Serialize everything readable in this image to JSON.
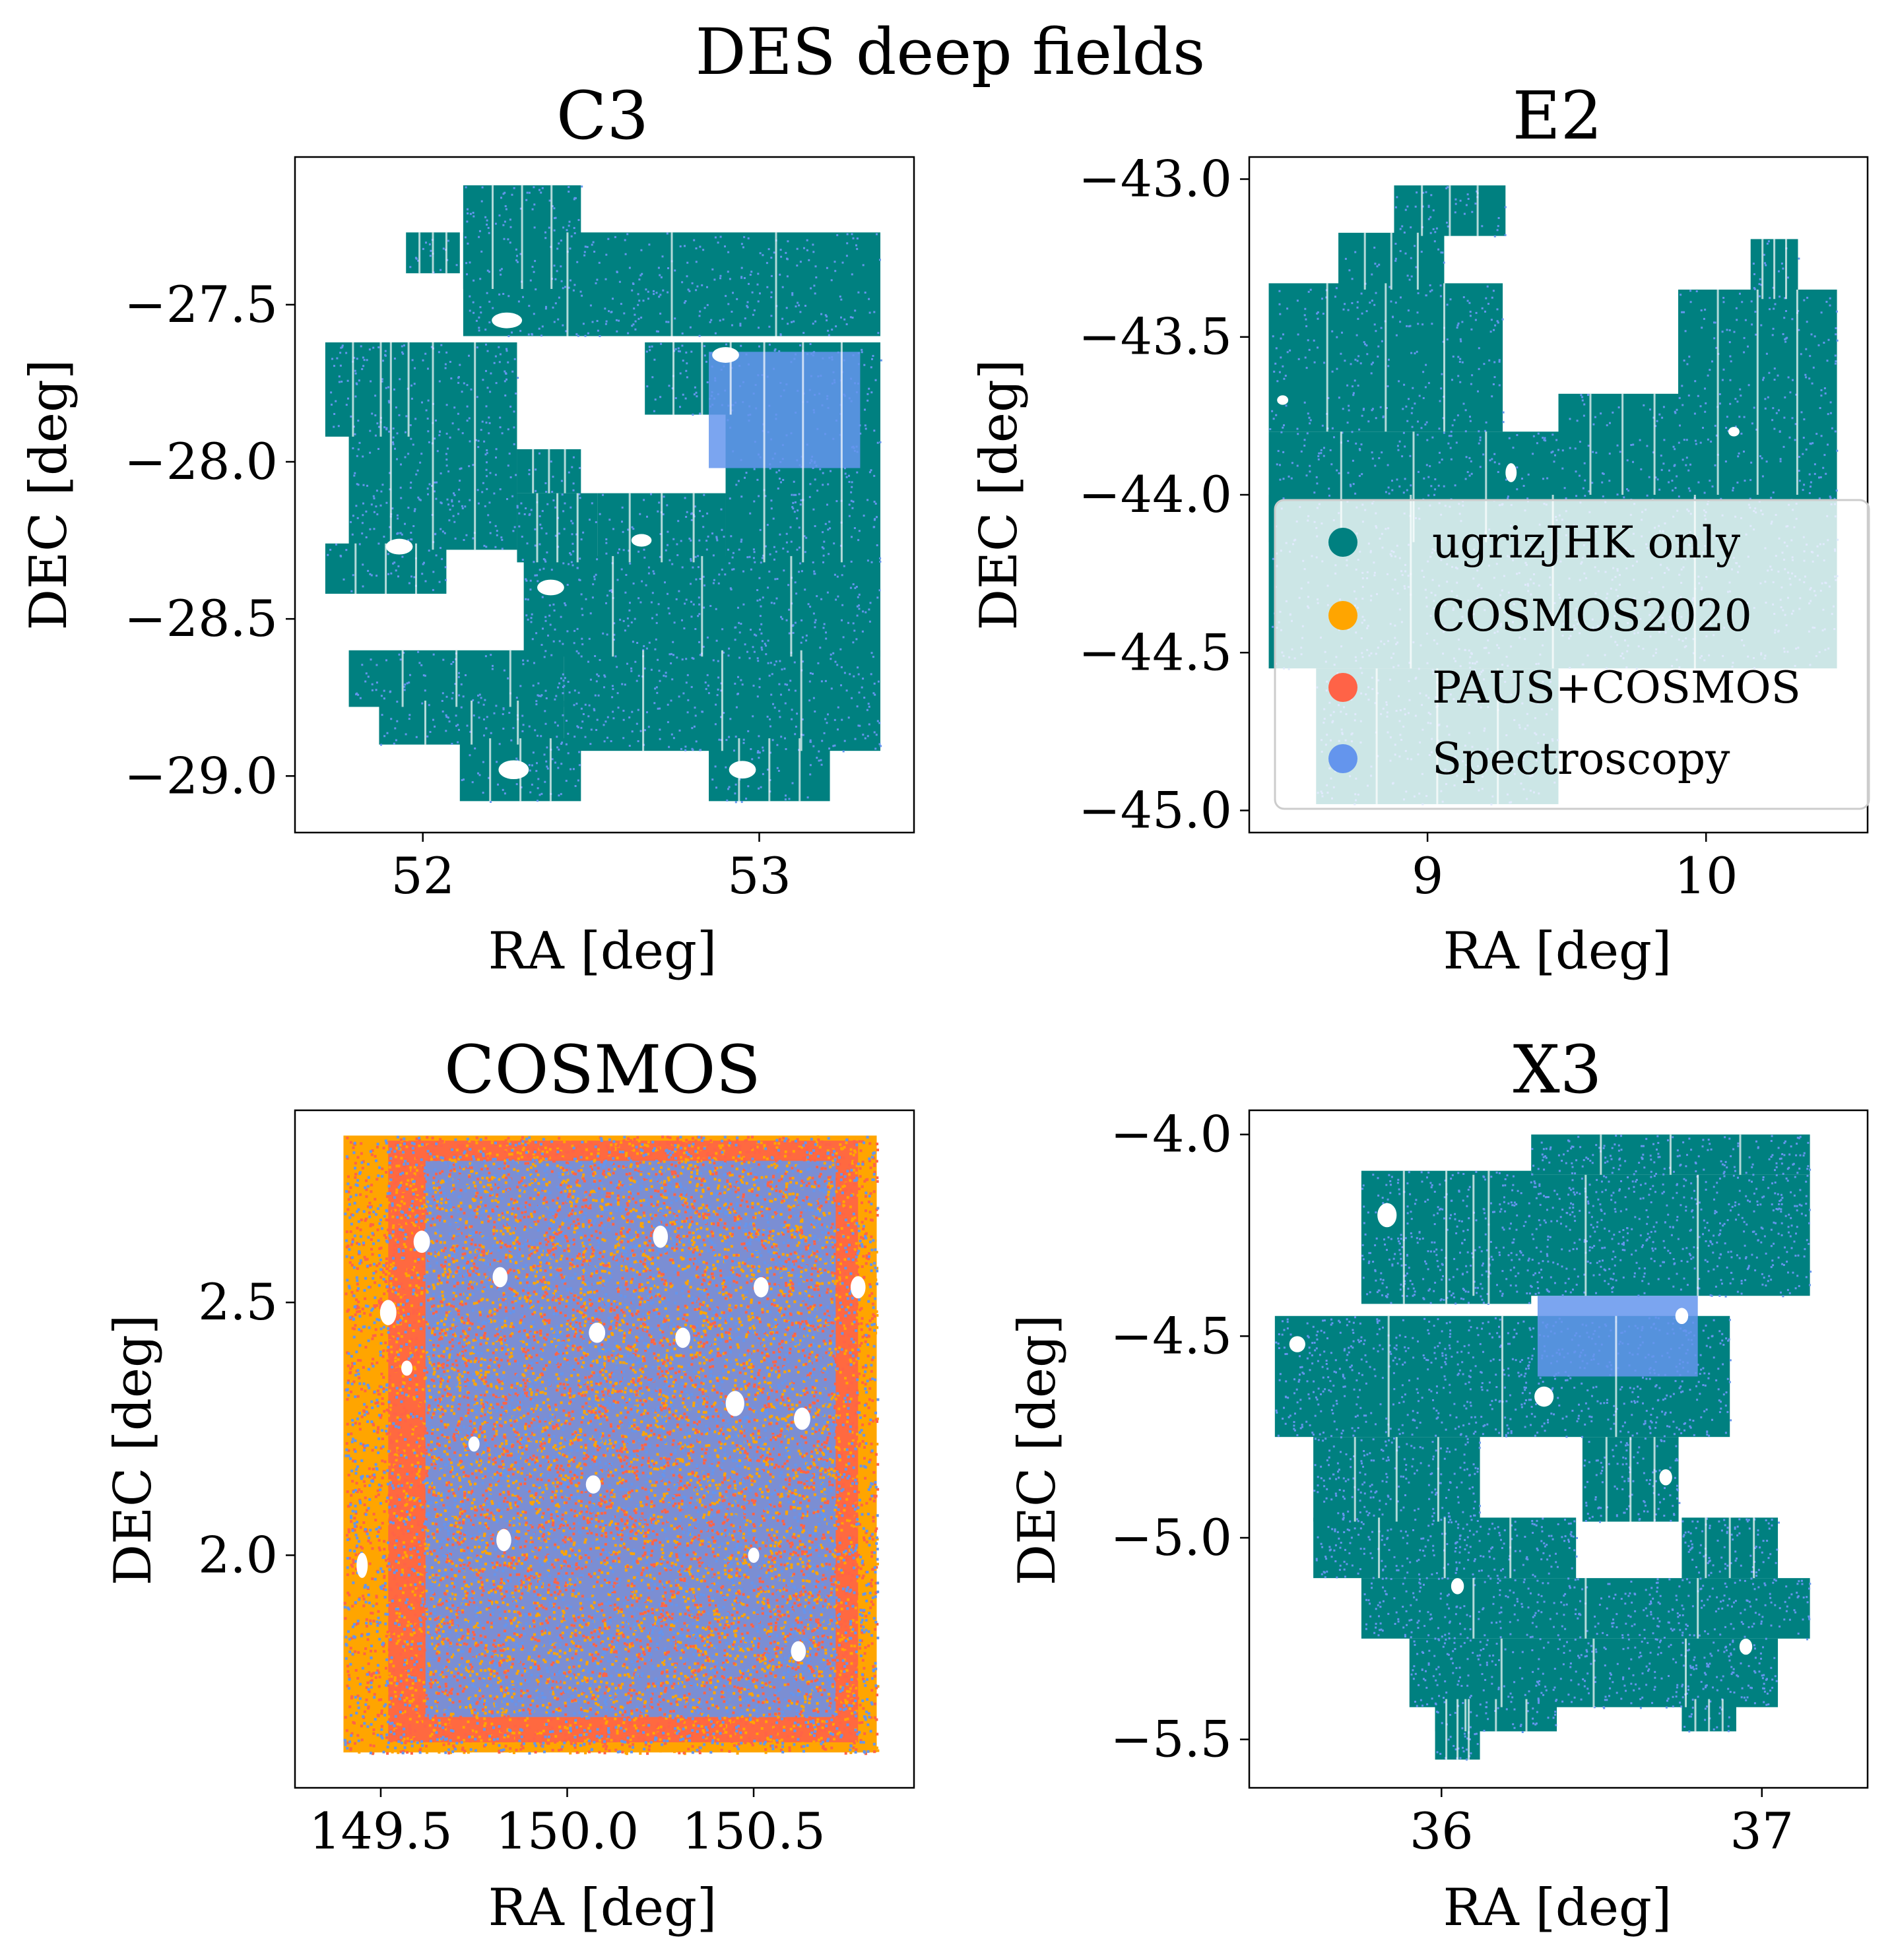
{
  "figure": {
    "title": "DES deep fields"
  },
  "colors": {
    "ugrizJHK only": "#008080",
    "COSMOS2020": "#FFA500",
    "PAUS+COSMOS": "#FF6347",
    "Spectroscopy": "#6495ED"
  },
  "legend": {
    "placement": "E2 panel, lower-right",
    "entries": [
      "ugrizJHK only",
      "COSMOS2020",
      "PAUS+COSMOS",
      "Spectroscopy"
    ]
  },
  "chart_data": [
    {
      "type": "scatter",
      "title": "C3",
      "xlabel": "RA [deg]",
      "ylabel": "DEC [deg]",
      "xlim": [
        51.62,
        53.46
      ],
      "ylim": [
        -29.18,
        -27.03
      ],
      "xticks": [
        "52",
        "53"
      ],
      "xtick_values": [
        52,
        53
      ],
      "yticks": [
        "−29.0",
        "−28.5",
        "−28.0",
        "−27.5"
      ],
      "ytick_values": [
        -29.0,
        -28.5,
        -28.0,
        -27.5
      ],
      "footprint": [
        [
          52.12,
          52.47,
          -27.45,
          -27.12
        ],
        [
          51.95,
          52.11,
          -27.4,
          -27.27
        ],
        [
          52.12,
          53.36,
          -27.6,
          -27.27
        ],
        [
          51.71,
          52.04,
          -27.92,
          -27.62
        ],
        [
          51.78,
          52.28,
          -28.28,
          -27.62
        ],
        [
          51.71,
          52.07,
          -28.42,
          -28.26
        ],
        [
          52.28,
          52.47,
          -28.1,
          -27.96
        ],
        [
          52.28,
          52.52,
          -28.32,
          -28.1
        ],
        [
          52.52,
          52.9,
          -28.32,
          -28.1
        ],
        [
          52.66,
          53.0,
          -27.85,
          -27.62
        ],
        [
          52.9,
          53.36,
          -28.32,
          -27.62
        ],
        [
          52.3,
          53.36,
          -28.62,
          -28.3
        ],
        [
          52.42,
          53.36,
          -28.92,
          -28.6
        ],
        [
          51.78,
          52.42,
          -28.78,
          -28.6
        ],
        [
          51.87,
          52.42,
          -28.9,
          -28.76
        ],
        [
          52.11,
          52.47,
          -29.08,
          -28.88
        ],
        [
          52.85,
          53.21,
          -29.08,
          -28.88
        ]
      ],
      "holes": [
        [
          52.25,
          -27.55,
          0.045,
          0.025
        ],
        [
          52.9,
          -27.66,
          0.04,
          0.025
        ],
        [
          52.38,
          -28.4,
          0.04,
          0.025
        ],
        [
          51.93,
          -28.27,
          0.04,
          0.025
        ],
        [
          52.27,
          -28.98,
          0.045,
          0.03
        ],
        [
          52.95,
          -28.98,
          0.04,
          0.028
        ],
        [
          52.65,
          -28.25,
          0.03,
          0.02
        ]
      ],
      "spec_dense": [
        [
          52.85,
          53.3,
          -28.02,
          -27.65
        ]
      ],
      "series": [
        {
          "name": "ugrizJHK only",
          "fraction": 0.82
        },
        {
          "name": "Spectroscopy",
          "fraction": 0.18
        }
      ]
    },
    {
      "type": "scatter",
      "title": "E2",
      "xlabel": "RA [deg]",
      "ylabel": "DEC [deg]",
      "xlim": [
        8.36,
        10.58
      ],
      "ylim": [
        -45.07,
        -42.93
      ],
      "xticks": [
        "9",
        "10"
      ],
      "xtick_values": [
        9,
        10
      ],
      "yticks": [
        "−45.0",
        "−44.5",
        "−44.0",
        "−43.5",
        "−43.0"
      ],
      "ytick_values": [
        -45.0,
        -44.5,
        -44.0,
        -43.5,
        -43.0
      ],
      "footprint": [
        [
          8.88,
          9.28,
          -43.18,
          -43.02
        ],
        [
          8.68,
          9.06,
          -43.35,
          -43.17
        ],
        [
          8.43,
          9.27,
          -43.8,
          -43.33
        ],
        [
          8.43,
          9.47,
          -44.15,
          -43.8
        ],
        [
          9.47,
          9.93,
          -44.0,
          -43.68
        ],
        [
          9.9,
          10.47,
          -44.0,
          -43.35
        ],
        [
          10.16,
          10.33,
          -43.38,
          -43.19
        ],
        [
          8.43,
          10.47,
          -44.55,
          -44.0
        ],
        [
          8.6,
          9.47,
          -44.98,
          -44.55
        ]
      ],
      "holes": [
        [
          9.3,
          -43.93,
          0.02,
          0.03
        ],
        [
          8.48,
          -43.7,
          0.02,
          0.015
        ],
        [
          10.1,
          -43.8,
          0.02,
          0.015
        ]
      ],
      "spec_dense": [],
      "series": [
        {
          "name": "ugrizJHK only",
          "fraction": 0.85
        },
        {
          "name": "Spectroscopy",
          "fraction": 0.15
        }
      ]
    },
    {
      "type": "scatter",
      "title": "COSMOS",
      "xlabel": "RA [deg]",
      "ylabel": "DEC [deg]",
      "xlim": [
        149.27,
        150.93
      ],
      "ylim": [
        1.54,
        2.88
      ],
      "xticks": [
        "149.5",
        "150.0",
        "150.5"
      ],
      "xtick_values": [
        149.5,
        150.0,
        150.5
      ],
      "yticks": [
        "2.0",
        "2.5"
      ],
      "ytick_values": [
        2.0,
        2.5
      ],
      "footprint": [
        [
          149.4,
          150.83,
          1.61,
          2.83
        ]
      ],
      "holes": [
        [
          149.61,
          2.62,
          0.022,
          0.022
        ],
        [
          150.25,
          2.63,
          0.02,
          0.022
        ],
        [
          150.08,
          2.44,
          0.022,
          0.02
        ],
        [
          149.52,
          2.48,
          0.022,
          0.025
        ],
        [
          150.31,
          2.43,
          0.02,
          0.02
        ],
        [
          150.45,
          2.3,
          0.025,
          0.025
        ],
        [
          150.63,
          2.27,
          0.022,
          0.022
        ],
        [
          149.83,
          2.03,
          0.02,
          0.022
        ],
        [
          150.07,
          2.14,
          0.02,
          0.018
        ],
        [
          150.62,
          1.81,
          0.02,
          0.02
        ],
        [
          150.78,
          2.53,
          0.02,
          0.022
        ],
        [
          149.57,
          2.37,
          0.015,
          0.015
        ],
        [
          149.82,
          2.55,
          0.02,
          0.02
        ],
        [
          150.52,
          2.53,
          0.02,
          0.02
        ],
        [
          149.75,
          2.22,
          0.015,
          0.015
        ],
        [
          150.5,
          2.0,
          0.015,
          0.015
        ],
        [
          149.45,
          1.98,
          0.015,
          0.025
        ]
      ],
      "series": [
        {
          "name": "COSMOS2020",
          "fraction": 0.28
        },
        {
          "name": "PAUS+COSMOS",
          "fraction": 0.24
        },
        {
          "name": "Spectroscopy",
          "fraction": 0.48
        }
      ]
    },
    {
      "type": "scatter",
      "title": "X3",
      "xlabel": "RA [deg]",
      "ylabel": "DEC [deg]",
      "xlim": [
        35.4,
        37.33
      ],
      "ylim": [
        -5.62,
        -3.94
      ],
      "xticks": [
        "36",
        "37"
      ],
      "xtick_values": [
        36,
        37
      ],
      "yticks": [
        "−5.5",
        "−5.0",
        "−4.5",
        "−4.0"
      ],
      "ytick_values": [
        -5.5,
        -5.0,
        -4.5,
        -4.0
      ],
      "footprint": [
        [
          36.28,
          37.15,
          -4.1,
          -4.0
        ],
        [
          35.75,
          37.15,
          -4.4,
          -4.1
        ],
        [
          35.75,
          36.28,
          -4.42,
          -4.09
        ],
        [
          35.48,
          36.9,
          -4.75,
          -4.45
        ],
        [
          35.6,
          36.12,
          -4.96,
          -4.75
        ],
        [
          36.44,
          36.74,
          -4.96,
          -4.75
        ],
        [
          35.6,
          36.42,
          -5.1,
          -4.95
        ],
        [
          36.75,
          37.05,
          -5.1,
          -4.95
        ],
        [
          35.75,
          37.15,
          -5.25,
          -5.1
        ],
        [
          35.9,
          37.05,
          -5.42,
          -5.25
        ],
        [
          35.98,
          36.36,
          -5.48,
          -5.4
        ],
        [
          36.75,
          36.92,
          -5.48,
          -5.4
        ],
        [
          35.98,
          36.12,
          -5.55,
          -5.4
        ]
      ],
      "holes": [
        [
          35.83,
          -4.2,
          0.03,
          0.03
        ],
        [
          36.32,
          -4.65,
          0.03,
          0.025
        ],
        [
          35.55,
          -4.52,
          0.025,
          0.02
        ],
        [
          36.7,
          -4.85,
          0.02,
          0.02
        ],
        [
          36.95,
          -5.27,
          0.02,
          0.02
        ],
        [
          36.75,
          -4.45,
          0.02,
          0.02
        ],
        [
          36.05,
          -5.12,
          0.02,
          0.02
        ]
      ],
      "spec_dense": [
        [
          36.3,
          36.8,
          -4.6,
          -4.4
        ]
      ],
      "series": [
        {
          "name": "ugrizJHK only",
          "fraction": 0.72
        },
        {
          "name": "Spectroscopy",
          "fraction": 0.28
        }
      ]
    }
  ]
}
